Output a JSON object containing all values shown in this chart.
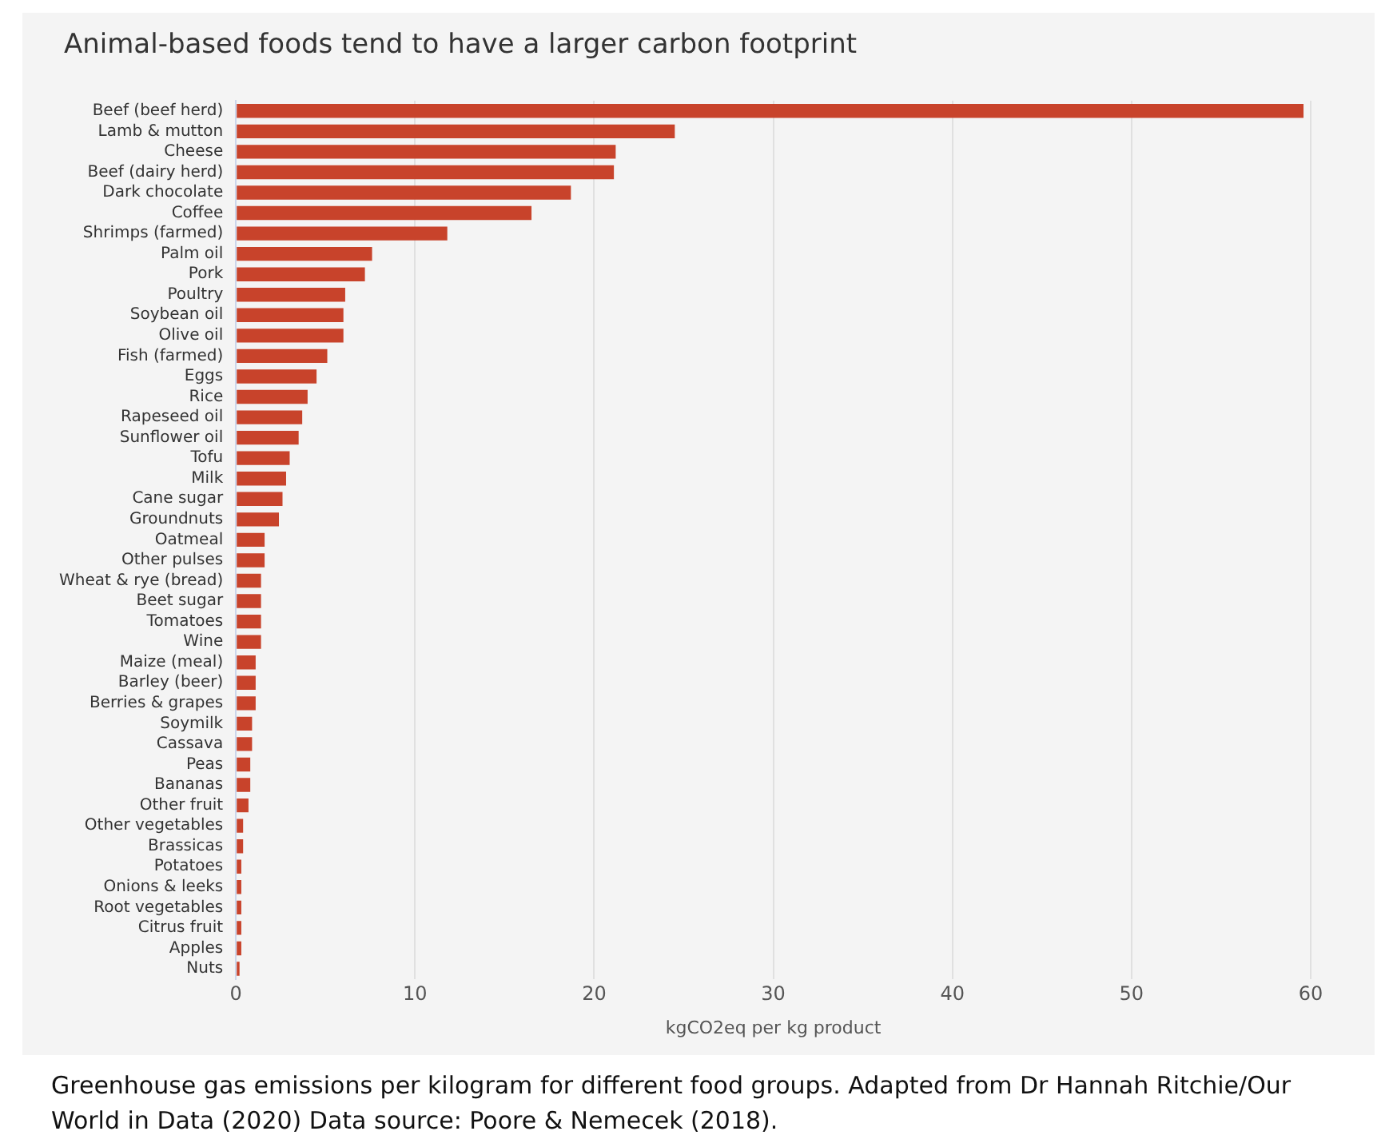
{
  "chart_data": {
    "type": "bar",
    "orientation": "horizontal",
    "title": "Animal-based foods tend to have a larger carbon footprint",
    "xlabel": "kgCO2eq per kg product",
    "categories": [
      "Beef (beef herd)",
      "Lamb & mutton",
      "Cheese",
      "Beef (dairy herd)",
      "Dark chocolate",
      "Coffee",
      "Shrimps (farmed)",
      "Palm oil",
      "Pork",
      "Poultry",
      "Soybean oil",
      "Olive oil",
      "Fish (farmed)",
      "Eggs",
      "Rice",
      "Rapeseed oil",
      "Sunflower oil",
      "Tofu",
      "Milk",
      "Cane sugar",
      "Groundnuts",
      "Oatmeal",
      "Other pulses",
      "Wheat & rye (bread)",
      "Beet sugar",
      "Tomatoes",
      "Wine",
      "Maize (meal)",
      "Barley (beer)",
      "Berries & grapes",
      "Soymilk",
      "Cassava",
      "Peas",
      "Bananas",
      "Other fruit",
      "Other vegetables",
      "Brassicas",
      "Potatoes",
      "Onions & leeks",
      "Root vegetables",
      "Citrus fruit",
      "Apples",
      "Nuts"
    ],
    "values": [
      59.6,
      24.5,
      21.2,
      21.1,
      18.7,
      16.5,
      11.8,
      7.6,
      7.2,
      6.1,
      6.0,
      6.0,
      5.1,
      4.5,
      4.0,
      3.7,
      3.5,
      3.0,
      2.8,
      2.6,
      2.4,
      1.6,
      1.6,
      1.4,
      1.4,
      1.4,
      1.4,
      1.1,
      1.1,
      1.1,
      0.9,
      0.9,
      0.8,
      0.8,
      0.7,
      0.4,
      0.4,
      0.3,
      0.3,
      0.3,
      0.3,
      0.3,
      0.2
    ],
    "color": "#c8432b",
    "xlim": [
      0,
      60
    ],
    "xticks": [
      0,
      10,
      20,
      30,
      40,
      50,
      60
    ],
    "grid": "x",
    "annotations": [
      "Greenhouse gas emissions per kilogram for different food groups. Adapted from Dr Hannah Ritchie/Our World in Data (2020) Data source: Poore & Nemecek (2018)."
    ]
  }
}
